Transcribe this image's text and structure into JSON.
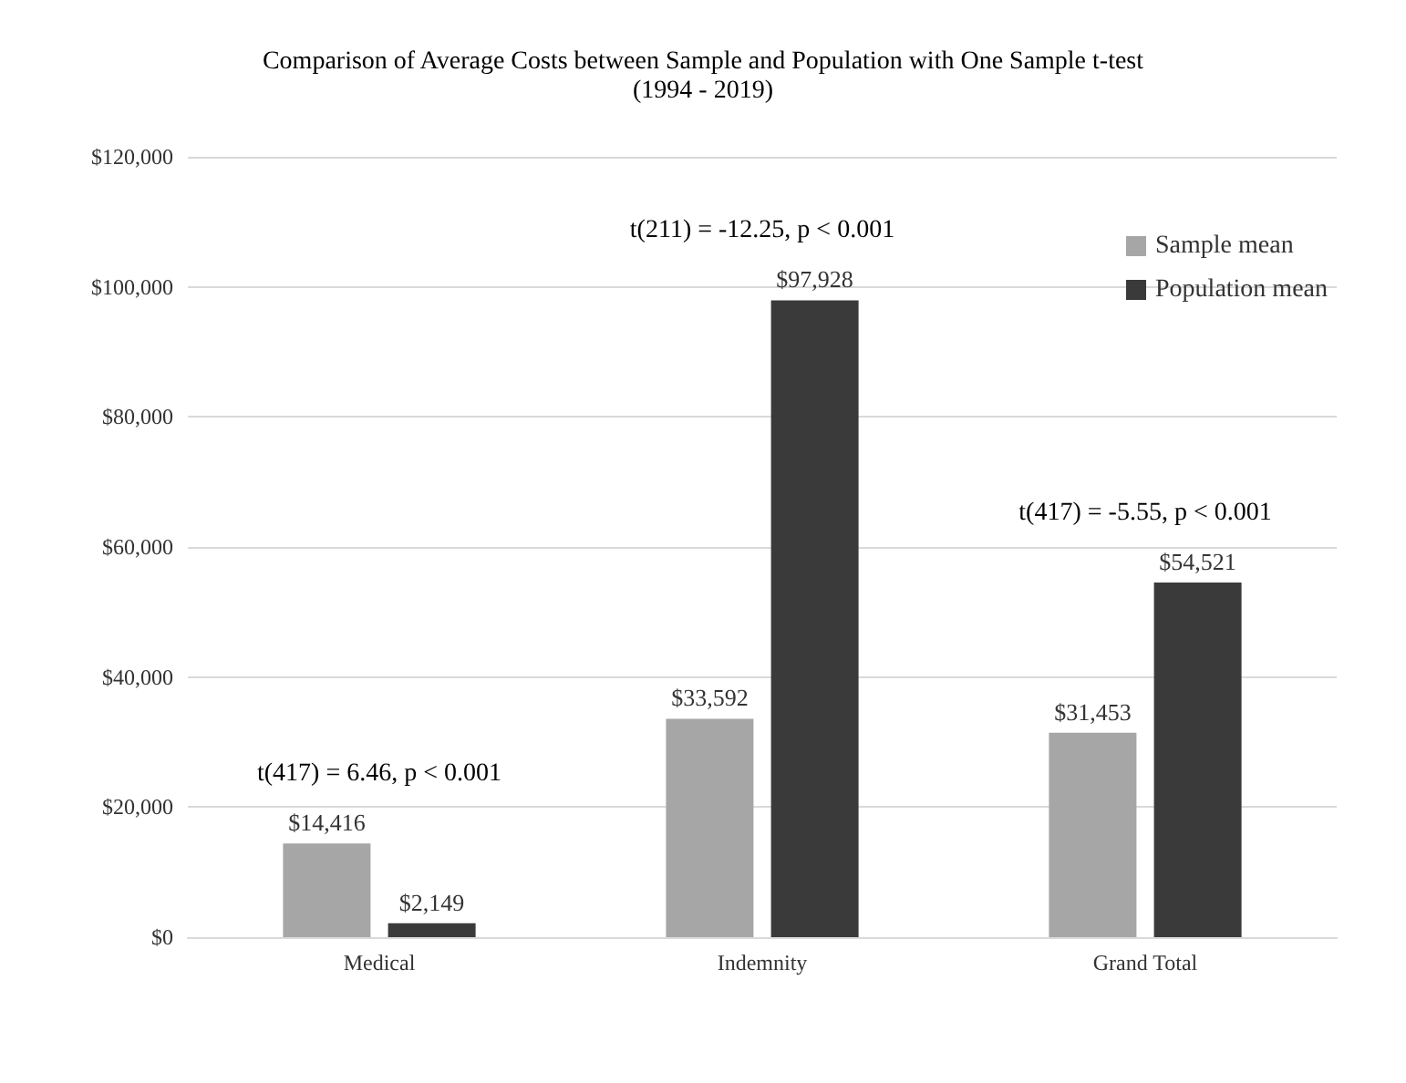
{
  "chart_data": {
    "type": "bar",
    "title": "Comparison of Average Costs between Sample and Population with One Sample t-test",
    "subtitle": "(1994 - 2019)",
    "categories": [
      "Medical",
      "Indemnity",
      "Grand Total"
    ],
    "series": [
      {
        "name": "Sample mean",
        "color": "#a6a6a6",
        "values": [
          14416,
          33592,
          31453
        ],
        "value_labels": [
          "$14,416",
          "$33,592",
          "$31,453"
        ]
      },
      {
        "name": "Population mean",
        "color": "#3a3a3a",
        "values": [
          2149,
          97928,
          54521
        ],
        "value_labels": [
          "$2,149",
          "$97,928",
          "$54,521"
        ]
      }
    ],
    "ylim": [
      0,
      120000
    ],
    "yticks": [
      {
        "value": 0,
        "label": "$0"
      },
      {
        "value": 20000,
        "label": "$20,000"
      },
      {
        "value": 40000,
        "label": "$40,000"
      },
      {
        "value": 60000,
        "label": "$60,000"
      },
      {
        "value": 80000,
        "label": "$80,000"
      },
      {
        "value": 100000,
        "label": "$100,000"
      },
      {
        "value": 120000,
        "label": "$120,000"
      }
    ],
    "grid": "y",
    "legend": "top right",
    "annotations": [
      "t(417) = 6.46, p < 0.001",
      "t(211) = -12.25, p < 0.001",
      "t(417) = -5.55, p < 0.001"
    ]
  }
}
